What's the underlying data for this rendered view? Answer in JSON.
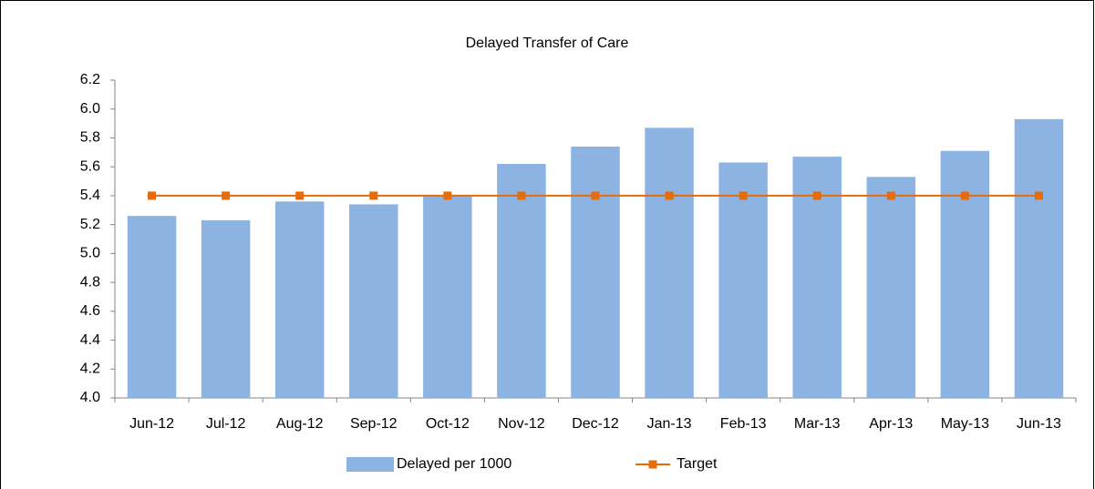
{
  "chart_data": {
    "type": "bar",
    "title": "Delayed Transfer of Care",
    "categories": [
      "Jun-12",
      "Jul-12",
      "Aug-12",
      "Sep-12",
      "Oct-12",
      "Nov-12",
      "Dec-12",
      "Jan-13",
      "Feb-13",
      "Mar-13",
      "Apr-13",
      "May-13",
      "Jun-13"
    ],
    "series": [
      {
        "name": "Delayed per 1000",
        "type": "bar",
        "color": "#8db3e2",
        "values": [
          5.26,
          5.23,
          5.36,
          5.34,
          5.4,
          5.62,
          5.74,
          5.87,
          5.63,
          5.67,
          5.53,
          5.71,
          5.93
        ]
      },
      {
        "name": "Target",
        "type": "line",
        "color": "#e46c0a",
        "values": [
          5.4,
          5.4,
          5.4,
          5.4,
          5.4,
          5.4,
          5.4,
          5.4,
          5.4,
          5.4,
          5.4,
          5.4,
          5.4
        ]
      }
    ],
    "ylim": [
      4.0,
      6.2
    ],
    "yticks": [
      {
        "value": 4.0,
        "label": "4.0"
      },
      {
        "value": 4.2,
        "label": "4.2"
      },
      {
        "value": 4.4,
        "label": "4.4"
      },
      {
        "value": 4.6,
        "label": "4.6"
      },
      {
        "value": 4.8,
        "label": "4.8"
      },
      {
        "value": 5.0,
        "label": "5.0"
      },
      {
        "value": 5.2,
        "label": "5.2"
      },
      {
        "value": 5.4,
        "label": "5.4"
      },
      {
        "value": 5.6,
        "label": "5.6"
      },
      {
        "value": 5.8,
        "label": "5.8"
      },
      {
        "value": 6.0,
        "label": "6.0"
      },
      {
        "value": 6.2,
        "label": "6.2"
      }
    ],
    "grid": false,
    "legend": "bottom"
  }
}
